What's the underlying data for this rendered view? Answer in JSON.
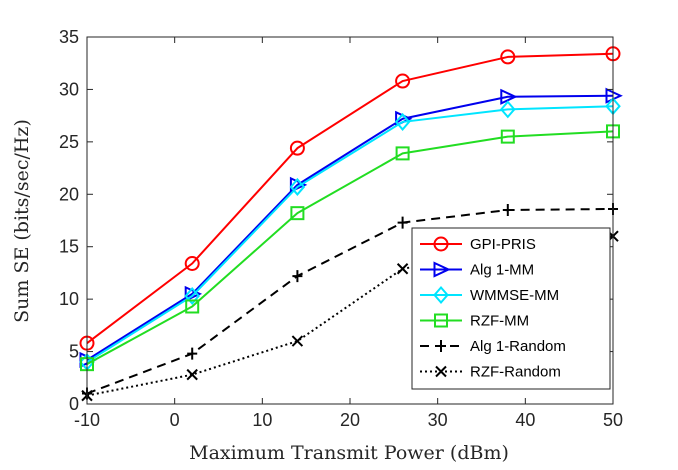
{
  "chart_data": {
    "type": "line",
    "xlabel": "Maximum Transmit Power (dBm)",
    "ylabel": "Sum SE (bits/sec/Hz)",
    "xlim": [
      -10,
      50
    ],
    "ylim": [
      0,
      35
    ],
    "xticks": [
      "-10",
      "0",
      "10",
      "20",
      "30",
      "40",
      "50"
    ],
    "yticks": [
      "0",
      "5",
      "10",
      "15",
      "20",
      "25",
      "30",
      "35"
    ],
    "grid": false,
    "legend_position": "bottom-right",
    "x": [
      -10,
      2,
      14,
      26,
      38,
      50
    ],
    "series": [
      {
        "name": "GPI-PRIS",
        "color": "#ff0000",
        "dash": "solid",
        "marker": "circle",
        "values": [
          5.8,
          13.4,
          24.4,
          30.8,
          33.1,
          33.4
        ]
      },
      {
        "name": "Alg 1-MM",
        "color": "#0000ee",
        "dash": "solid",
        "marker": "triangle-right",
        "values": [
          4.2,
          10.5,
          20.9,
          27.2,
          29.3,
          29.4
        ]
      },
      {
        "name": "WMMSE-MM",
        "color": "#00e5ff",
        "dash": "solid",
        "marker": "diamond",
        "values": [
          4.0,
          10.3,
          20.7,
          26.9,
          28.1,
          28.4
        ]
      },
      {
        "name": "RZF-MM",
        "color": "#22dd22",
        "dash": "solid",
        "marker": "square",
        "values": [
          3.8,
          9.3,
          18.2,
          23.9,
          25.5,
          26.0
        ]
      },
      {
        "name": "Alg 1-Random",
        "color": "#000000",
        "dash": "dashed",
        "marker": "plus",
        "values": [
          1.0,
          4.8,
          12.2,
          17.3,
          18.5,
          18.6
        ]
      },
      {
        "name": "RZF-Random",
        "color": "#000000",
        "dash": "dotted",
        "marker": "x",
        "values": [
          0.8,
          2.8,
          6.0,
          12.9,
          14.5,
          16.0
        ]
      }
    ]
  }
}
